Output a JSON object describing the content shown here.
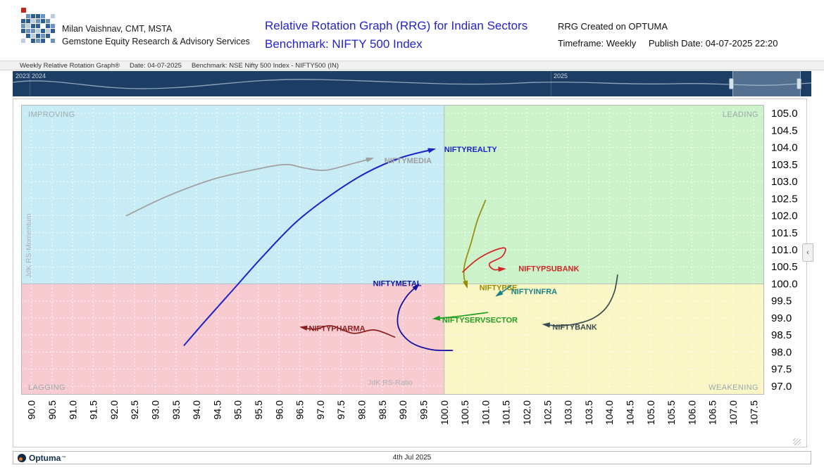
{
  "header": {
    "brand": {
      "name": "Milan Vaishnav, CMT, MSTA",
      "subtitle": "Gemstone Equity Research & Advisory Services"
    },
    "title": {
      "line1": "Relative Rotation Graph (RRG) for Indian Sectors",
      "line2": "Benchmark: NIFTY 500 Index",
      "accent_color": "#2424cc"
    },
    "meta": {
      "created": "RRG Created on OPTUMA",
      "timeframe": "Timeframe: Weekly",
      "publish": "Publish Date: 04-07-2025 22:20"
    }
  },
  "toolbar": {
    "title": "Weekly Relative Rotation Graph®",
    "date": "Date: 04-07-2025",
    "benchmark": "Benchmark: NSE Nifty 500 Index - NIFTY500 (IN)"
  },
  "timeline": {
    "years": [
      {
        "label": "2023"
      },
      {
        "label": "2024"
      },
      {
        "label": "2025"
      }
    ]
  },
  "icons": {
    "collapse_chevron": "‹"
  },
  "footer": {
    "brand": "Optuma",
    "trademark": "™",
    "date": "4th Jul 2025"
  },
  "chart_data": {
    "type": "scatter",
    "subtype": "relative-rotation-graph",
    "title": "Relative Rotation Graph (RRG) for Indian Sectors",
    "xlabel": "JdK RS-Ratio",
    "ylabel": "JdK RS-Momentum",
    "xlim": [
      89.75,
      107.75
    ],
    "ylim": [
      96.75,
      105.25
    ],
    "center": [
      100,
      100
    ],
    "grid": "dashed",
    "x_ticks": [
      "90.0",
      "90.5",
      "91.0",
      "91.5",
      "92.0",
      "92.5",
      "93.0",
      "93.5",
      "94.0",
      "94.5",
      "95.0",
      "95.5",
      "96.0",
      "96.5",
      "97.0",
      "97.5",
      "98.0",
      "98.5",
      "99.0",
      "99.5",
      "100.0",
      "100.5",
      "101.0",
      "101.5",
      "102.0",
      "102.5",
      "103.0",
      "103.5",
      "104.0",
      "104.5",
      "105.0",
      "105.5",
      "106.0",
      "106.5",
      "107.0",
      "107.5"
    ],
    "y_ticks": [
      "105.0",
      "104.5",
      "104.0",
      "103.5",
      "103.0",
      "102.5",
      "102.0",
      "101.5",
      "101.0",
      "100.5",
      "100.0",
      "99.5",
      "99.0",
      "98.5",
      "98.0",
      "97.5",
      "97.0"
    ],
    "quadrants": [
      {
        "name": "IMPROVING",
        "position": "top-left",
        "color": "#c7ecf5"
      },
      {
        "name": "LEADING",
        "position": "top-right",
        "color": "#cbf2c8"
      },
      {
        "name": "LAGGING",
        "position": "bottom-left",
        "color": "#f8cbd0"
      },
      {
        "name": "WEAKENING",
        "position": "bottom-right",
        "color": "#fbf6c5"
      }
    ],
    "series": [
      {
        "name": "NIFTYREALTY",
        "color": "#1e22cc",
        "width": 2,
        "points": [
          [
            93.7,
            98.2
          ],
          [
            94.2,
            98.9
          ],
          [
            94.9,
            99.85
          ],
          [
            95.6,
            100.8
          ],
          [
            96.4,
            101.8
          ],
          [
            97.25,
            102.6
          ],
          [
            98.1,
            103.25
          ],
          [
            98.95,
            103.7
          ],
          [
            99.75,
            103.95
          ]
        ],
        "label_at": [
          100.0,
          103.95
        ],
        "label_anchor": "start"
      },
      {
        "name": "NIFTYMEDIA",
        "color": "#9e9e9e",
        "width": 1.7,
        "points": [
          [
            92.3,
            102.0
          ],
          [
            93.25,
            102.55
          ],
          [
            94.35,
            103.05
          ],
          [
            95.4,
            103.35
          ],
          [
            96.15,
            103.5
          ],
          [
            96.6,
            103.4
          ],
          [
            97.1,
            103.33
          ],
          [
            97.7,
            103.5
          ],
          [
            98.25,
            103.68
          ]
        ],
        "label_at": [
          98.55,
          103.62
        ],
        "label_anchor": "start"
      },
      {
        "name": "NIFTYPSE",
        "color": "#9a8c00",
        "width": 1.7,
        "points": [
          [
            101.0,
            102.45
          ],
          [
            100.8,
            101.85
          ],
          [
            100.65,
            101.2
          ],
          [
            100.5,
            100.6
          ],
          [
            100.48,
            100.2
          ],
          [
            100.55,
            99.92
          ]
        ],
        "label_at": [
          100.85,
          99.9
        ],
        "label_anchor": "start"
      },
      {
        "name": "NIFTYPSUBANK",
        "color": "#d42424",
        "width": 1.7,
        "points": [
          [
            100.45,
            100.35
          ],
          [
            100.78,
            100.7
          ],
          [
            101.15,
            100.95
          ],
          [
            101.47,
            101.05
          ],
          [
            101.4,
            100.8
          ],
          [
            101.1,
            100.6
          ],
          [
            101.2,
            100.42
          ],
          [
            101.45,
            100.44
          ]
        ],
        "label_at": [
          101.8,
          100.45
        ],
        "label_anchor": "start"
      },
      {
        "name": "NIFTYINFRA",
        "color": "#18848a",
        "width": 1.7,
        "points": [
          [
            101.62,
            99.95
          ],
          [
            101.45,
            99.8
          ],
          [
            101.28,
            99.66
          ]
        ],
        "label_at": [
          101.62,
          99.78
        ],
        "label_anchor": "start"
      },
      {
        "name": "NIFTYMETAL",
        "color": "#12129e",
        "width": 1.8,
        "points": [
          [
            100.2,
            98.05
          ],
          [
            99.7,
            98.07
          ],
          [
            99.2,
            98.28
          ],
          [
            98.9,
            98.7
          ],
          [
            98.9,
            99.2
          ],
          [
            99.1,
            99.65
          ],
          [
            99.37,
            99.97
          ]
        ],
        "label_at": [
          99.45,
          100.02
        ],
        "label_anchor": "end"
      },
      {
        "name": "NIFTYSERVSECTOR",
        "color": "#1f9e1f",
        "width": 1.7,
        "points": [
          [
            101.05,
            99.16
          ],
          [
            100.55,
            99.08
          ],
          [
            100.12,
            99.02
          ],
          [
            99.76,
            98.98
          ]
        ],
        "label_at": [
          99.95,
          98.95
        ],
        "label_anchor": "start"
      },
      {
        "name": "NIFTYPHARMA",
        "color": "#8e1f1f",
        "width": 1.7,
        "points": [
          [
            98.8,
            98.44
          ],
          [
            98.3,
            98.65
          ],
          [
            97.8,
            98.55
          ],
          [
            97.26,
            98.77
          ],
          [
            96.86,
            98.67
          ],
          [
            96.54,
            98.73
          ]
        ],
        "label_at": [
          96.72,
          98.7
        ],
        "label_anchor": "start"
      },
      {
        "name": "NIFTYBANK",
        "color": "#3c4c55",
        "width": 1.7,
        "points": [
          [
            104.2,
            100.26
          ],
          [
            104.12,
            99.76
          ],
          [
            103.93,
            99.31
          ],
          [
            103.62,
            99.0
          ],
          [
            103.2,
            98.83
          ],
          [
            102.77,
            98.77
          ],
          [
            102.42,
            98.81
          ]
        ],
        "label_at": [
          102.62,
          98.74
        ],
        "label_anchor": "start"
      }
    ]
  }
}
